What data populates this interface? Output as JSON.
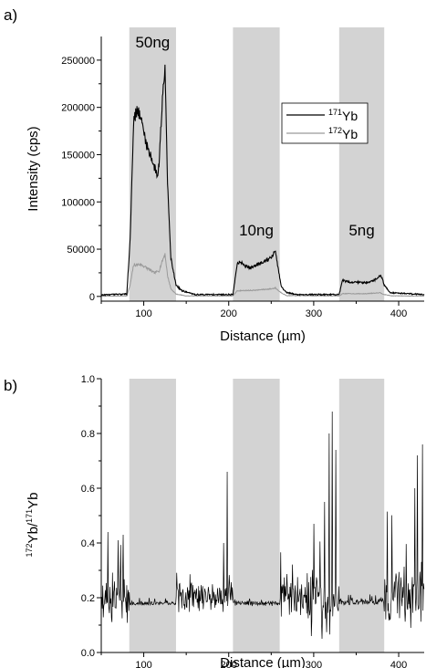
{
  "chart_data": [
    {
      "type": "line",
      "panel_label": "a)",
      "xlabel": "Distance (µm)",
      "ylabel": "Intensity (cps)",
      "xlim": [
        50,
        430
      ],
      "ylim": [
        -5000,
        275000
      ],
      "xticks": [
        "100",
        "200",
        "300",
        "400"
      ],
      "yticks": [
        "0",
        "50000",
        "100000",
        "150000",
        "200000",
        "250000"
      ],
      "grid": false,
      "legend_position": "right",
      "legend": [
        {
          "mass": "171",
          "element": "Yb",
          "color": "#000000"
        },
        {
          "mass": "172",
          "element": "Yb",
          "color": "#9a9a9a"
        }
      ],
      "bands": [
        {
          "x0": 83,
          "x1": 138,
          "label": "50ng",
          "color": "#d3d3d3"
        },
        {
          "x0": 205,
          "x1": 260,
          "label": "10ng",
          "color": "#d3d3d3"
        },
        {
          "x0": 330,
          "x1": 383,
          "label": "5ng",
          "color": "#d3d3d3"
        }
      ],
      "series": [
        {
          "id": "yb171",
          "color": "#000000",
          "x": [
            50,
            80,
            84,
            88,
            92,
            96,
            100,
            104,
            108,
            112,
            116,
            118,
            122,
            125,
            128,
            132,
            138,
            145,
            160,
            205,
            210,
            214,
            220,
            226,
            232,
            238,
            244,
            250,
            255,
            258,
            262,
            268,
            280,
            330,
            334,
            338,
            344,
            352,
            360,
            368,
            375,
            379,
            383,
            390,
            430
          ],
          "values": [
            1500,
            2500,
            60000,
            185000,
            198000,
            190000,
            175000,
            158000,
            150000,
            138000,
            128000,
            140000,
            210000,
            248000,
            120000,
            40000,
            12000,
            6000,
            2000,
            2000,
            35000,
            37000,
            32000,
            30000,
            33000,
            36000,
            38000,
            41000,
            48000,
            30000,
            10000,
            4000,
            2000,
            2000,
            17000,
            16000,
            15000,
            15000,
            14500,
            16000,
            19000,
            23000,
            12000,
            4000,
            2000
          ]
        },
        {
          "id": "yb172",
          "color": "#9a9a9a",
          "x": [
            50,
            80,
            84,
            88,
            96,
            104,
            112,
            118,
            122,
            125,
            128,
            132,
            138,
            150,
            205,
            210,
            230,
            250,
            255,
            260,
            268,
            330,
            334,
            360,
            378,
            383,
            392,
            430
          ],
          "values": [
            300,
            500,
            12000,
            33000,
            34000,
            30000,
            25000,
            27000,
            38000,
            45000,
            22000,
            8000,
            2500,
            500,
            500,
            6000,
            6500,
            8000,
            9000,
            5000,
            800,
            500,
            3000,
            2800,
            4000,
            2000,
            600,
            400
          ]
        }
      ]
    },
    {
      "type": "line",
      "panel_label": "b)",
      "xlabel": "Distance (µm)",
      "ylabel_parts": {
        "num_mass": "172",
        "num_el": "Yb",
        "den_mass": "171",
        "den_el": "Yb"
      },
      "xlim": [
        50,
        430
      ],
      "ylim": [
        0.0,
        1.0
      ],
      "xticks": [
        "100",
        "200",
        "300",
        "400"
      ],
      "yticks": [
        "0.0",
        "0.2",
        "0.4",
        "0.6",
        "0.8",
        "1.0"
      ],
      "grid": false,
      "bands": [
        {
          "x0": 83,
          "x1": 138
        },
        {
          "x0": 205,
          "x1": 260
        },
        {
          "x0": 330,
          "x1": 383
        }
      ],
      "series": [
        {
          "id": "ratio",
          "color": "#000000",
          "segments": [
            {
              "x0": 50,
              "x1": 83,
              "base": 0.2,
              "noise": 0.07,
              "max": 0.45
            },
            {
              "x0": 83,
              "x1": 138,
              "base": 0.18,
              "noise": 0.006,
              "max": 0.2
            },
            {
              "x0": 138,
              "x1": 205,
              "base": 0.2,
              "noise": 0.045,
              "max": 0.3
            },
            {
              "x0": 205,
              "x1": 260,
              "base": 0.18,
              "noise": 0.008,
              "max": 0.21
            },
            {
              "x0": 260,
              "x1": 330,
              "base": 0.2,
              "noise": 0.08,
              "max": 0.55
            },
            {
              "x0": 330,
              "x1": 383,
              "base": 0.185,
              "noise": 0.01,
              "max": 0.22
            },
            {
              "x0": 383,
              "x1": 430,
              "base": 0.2,
              "noise": 0.1,
              "max": 0.75
            }
          ],
          "spikes": [
            {
              "x": 198,
              "y": 0.66
            },
            {
              "x": 194,
              "y": 0.4
            },
            {
              "x": 300,
              "y": 0.47
            },
            {
              "x": 313,
              "y": 0.55
            },
            {
              "x": 318,
              "y": 0.8
            },
            {
              "x": 322,
              "y": 0.88
            },
            {
              "x": 326,
              "y": 0.74
            },
            {
              "x": 310,
              "y": 0.05
            },
            {
              "x": 297,
              "y": 0.06
            },
            {
              "x": 422,
              "y": 0.72
            },
            {
              "x": 428,
              "y": 0.76
            },
            {
              "x": 419,
              "y": 0.6
            },
            {
              "x": 58,
              "y": 0.44
            },
            {
              "x": 70,
              "y": 0.41
            },
            {
              "x": 76,
              "y": 0.43
            }
          ]
        }
      ]
    }
  ]
}
